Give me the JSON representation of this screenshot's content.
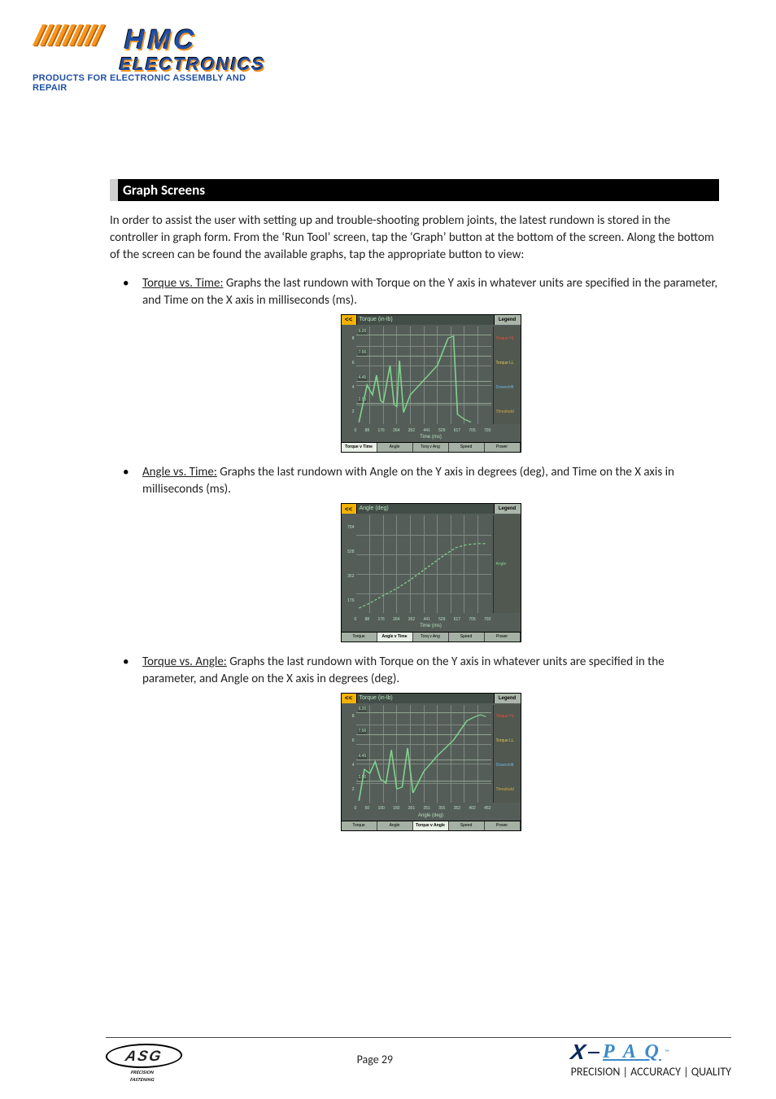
{
  "logo": {
    "word1": "HMC",
    "word2": "ELECTRONICS",
    "tagline": "PRODUCTS FOR ELECTRONIC ASSEMBLY AND REPAIR"
  },
  "section_title": "Graph Screens",
  "intro": "In order to assist the user with setting up and trouble-shooting problem joints, the latest rundown is stored in the controller in graph form.  From the ‘Run Tool’ screen, tap the ‘Graph’ button at the bottom of the screen.  Along the bottom of the screen can be found the available graphs, tap the appropriate button to view:",
  "items": [
    {
      "title": "Torque vs. Time:",
      "desc": "  Graphs the last rundown with Torque on the Y axis in whatever units are specified in the parameter, and Time on the X axis in milliseconds (ms).",
      "graph_key": "torque_time"
    },
    {
      "title": "Angle vs. Time:",
      "desc": "  Graphs the last rundown with Angle on the Y axis in degrees (deg), and Time on the X axis in milliseconds (ms).",
      "graph_key": "angle_time"
    },
    {
      "title": "Torque vs. Angle:",
      "desc": "  Graphs the last rundown with Torque on the Y axis in whatever units are specified in the parameter, and Angle on the X axis in degrees (deg).",
      "graph_key": "torque_angle"
    }
  ],
  "graphs": {
    "torque_time": {
      "back": "<<",
      "title": "Torque (in-lb)",
      "legend_label": "Legend",
      "ylabel": "",
      "y_ticks": [
        "8",
        "6",
        "4",
        "2"
      ],
      "hlines": [
        {
          "v_pct": 8,
          "label": "9.20"
        },
        {
          "v_pct": 30,
          "label": "7.56"
        },
        {
          "v_pct": 56,
          "label": "4.45"
        },
        {
          "v_pct": 78,
          "label": "2.50"
        }
      ],
      "xlabel": "Time (ms)",
      "x_ticks": [
        "0",
        "88",
        "176",
        "264",
        "352",
        "441",
        "529",
        "617",
        "705",
        "793"
      ],
      "side_labels": [
        {
          "text": "Torque HL",
          "class": "c-red"
        },
        {
          "text": "Torque LL",
          "class": "c-yellow"
        },
        {
          "text": "Downshift",
          "class": "c-blue"
        },
        {
          "text": "Threshold",
          "class": "c-amber"
        }
      ],
      "tabs": [
        "Torque v Time",
        "Angle",
        "Torq v Ang",
        "Speed",
        "Power"
      ],
      "active_tab": 0,
      "trace_color": "#7fd18c",
      "trace_points": [
        [
          2,
          98
        ],
        [
          8,
          60
        ],
        [
          12,
          70
        ],
        [
          15,
          50
        ],
        [
          18,
          76
        ],
        [
          20,
          78
        ],
        [
          25,
          40
        ],
        [
          28,
          80
        ],
        [
          30,
          82
        ],
        [
          32,
          35
        ],
        [
          35,
          88
        ],
        [
          40,
          70
        ],
        [
          50,
          55
        ],
        [
          60,
          40
        ],
        [
          68,
          12
        ],
        [
          72,
          10
        ],
        [
          75,
          90
        ],
        [
          80,
          95
        ],
        [
          85,
          98
        ]
      ]
    },
    "angle_time": {
      "back": "<<",
      "title": "Angle (deg)",
      "legend_label": "Legend",
      "y_ticks": [
        "704",
        "528",
        "352",
        "176"
      ],
      "hlines": [],
      "xlabel": "Time (ms)",
      "x_ticks": [
        "0",
        "88",
        "176",
        "264",
        "352",
        "441",
        "529",
        "617",
        "705",
        "793"
      ],
      "side_labels": [
        {
          "text": "Angle",
          "class": "c-green"
        }
      ],
      "tabs": [
        "Torque",
        "Angle v Time",
        "Torq v Ang",
        "Speed",
        "Power"
      ],
      "active_tab": 1,
      "trace_color": "#7fd18c",
      "trace_dash": true,
      "trace_points": [
        [
          2,
          95
        ],
        [
          10,
          90
        ],
        [
          20,
          82
        ],
        [
          30,
          75
        ],
        [
          40,
          66
        ],
        [
          50,
          56
        ],
        [
          58,
          48
        ],
        [
          66,
          40
        ],
        [
          74,
          33
        ],
        [
          82,
          30
        ],
        [
          90,
          29
        ],
        [
          96,
          29
        ]
      ]
    },
    "torque_angle": {
      "back": "<<",
      "title": "Torque (in-lb)",
      "legend_label": "Legend",
      "y_ticks": [
        "8",
        "6",
        "4",
        "2"
      ],
      "hlines": [
        {
          "v_pct": 8,
          "label": "9.20"
        },
        {
          "v_pct": 30,
          "label": "7.56"
        },
        {
          "v_pct": 56,
          "label": "4.45"
        },
        {
          "v_pct": 78,
          "label": "2.50"
        }
      ],
      "xlabel": "Angle (deg)",
      "x_ticks": [
        "0",
        "50",
        "100",
        "150",
        "201",
        "251",
        "301",
        "352",
        "402",
        "452"
      ],
      "side_labels": [
        {
          "text": "Torque HL",
          "class": "c-red"
        },
        {
          "text": "Torque LL",
          "class": "c-yellow"
        },
        {
          "text": "Downshift",
          "class": "c-blue"
        },
        {
          "text": "Threshold",
          "class": "c-amber"
        }
      ],
      "tabs": [
        "Torque",
        "Angle",
        "Torque v Angle",
        "Speed",
        "Power"
      ],
      "active_tab": 2,
      "trace_color": "#7fd18c",
      "trace_points": [
        [
          2,
          98
        ],
        [
          6,
          66
        ],
        [
          10,
          70
        ],
        [
          14,
          58
        ],
        [
          18,
          76
        ],
        [
          22,
          80
        ],
        [
          26,
          46
        ],
        [
          30,
          86
        ],
        [
          34,
          84
        ],
        [
          38,
          44
        ],
        [
          42,
          90
        ],
        [
          50,
          68
        ],
        [
          60,
          52
        ],
        [
          72,
          36
        ],
        [
          82,
          16
        ],
        [
          88,
          12
        ],
        [
          92,
          10
        ],
        [
          96,
          12
        ]
      ]
    }
  },
  "footer": {
    "page_label": "Page 29",
    "asg": {
      "word": "ASG",
      "sub1": "PRECISION",
      "sub2": "FASTENING"
    },
    "xpaq": {
      "x": "X",
      "paq": "P A Q",
      "sub": "PRECISION | ACCURACY | QUALITY",
      "tm": "™"
    }
  },
  "colors": {
    "section_bg": "#000000",
    "section_fg": "#ffffff",
    "graph_bg": "#555d59",
    "graph_grid": "#7d897f",
    "back_btn_bg": "#f3b300",
    "hmc_primary": "#1f4fa5",
    "hmc_accent": "#f7941d"
  }
}
